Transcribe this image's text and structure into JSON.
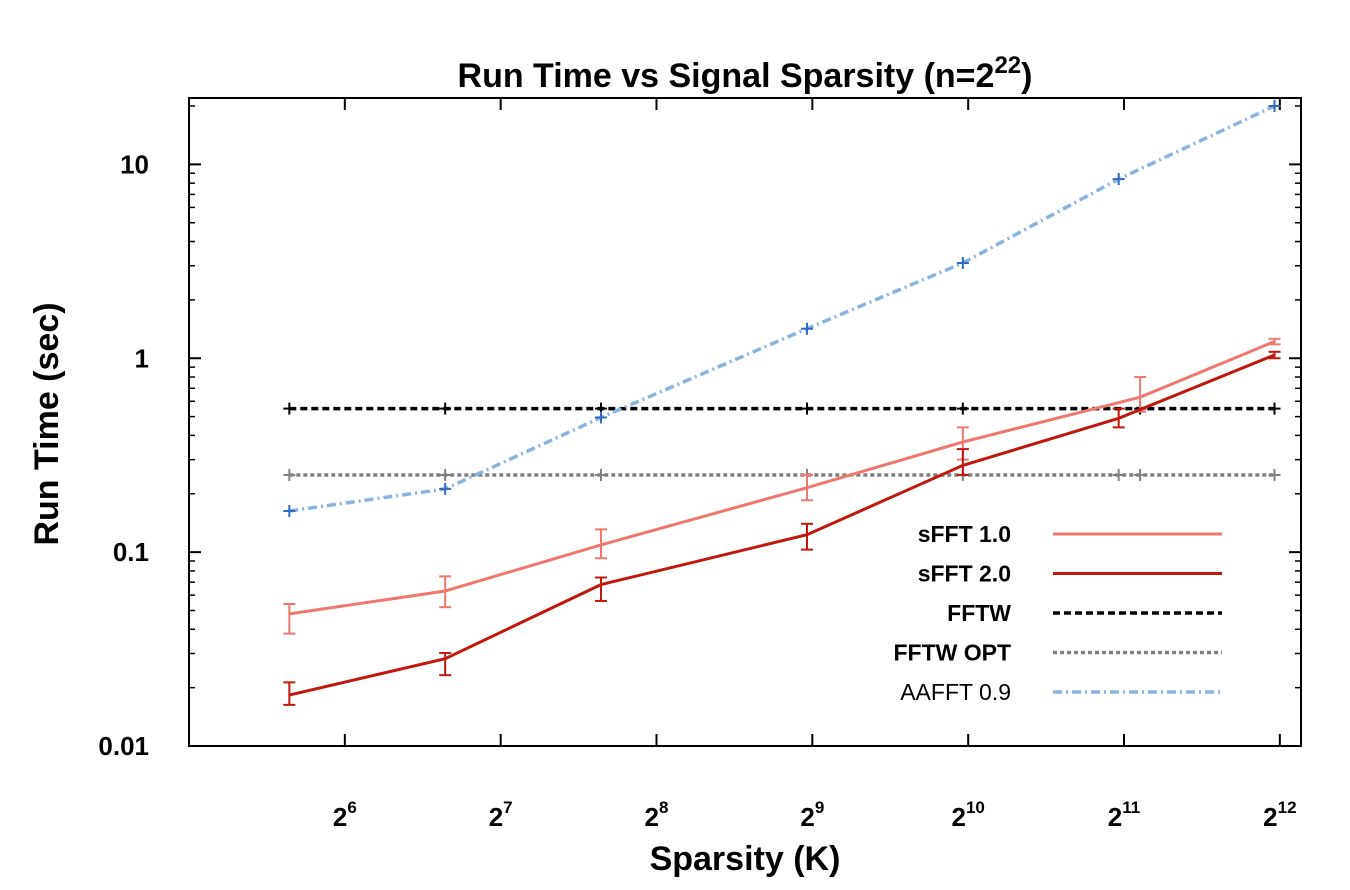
{
  "chart_data": {
    "type": "line",
    "title": {
      "main": "Run Time vs Signal Sparsity (n=2",
      "sup": "22",
      "tail": ")"
    },
    "xlabel": "Sparsity (K)",
    "ylabel": "Run Time (sec)",
    "x_scale": "log2",
    "y_scale": "log10",
    "xlim": [
      32,
      4500
    ],
    "ylim": [
      0.01,
      22
    ],
    "y_ticks": [
      {
        "value": 0.01,
        "label": "0.01"
      },
      {
        "value": 0.1,
        "label": "0.1"
      },
      {
        "value": 1,
        "label": "1"
      },
      {
        "value": 10,
        "label": "10"
      }
    ],
    "x_ticks": [
      {
        "value": 64,
        "base": "2",
        "exp": "6"
      },
      {
        "value": 128,
        "base": "2",
        "exp": "7"
      },
      {
        "value": 256,
        "base": "2",
        "exp": "8"
      },
      {
        "value": 512,
        "base": "2",
        "exp": "9"
      },
      {
        "value": 1024,
        "base": "2",
        "exp": "10"
      },
      {
        "value": 2048,
        "base": "2",
        "exp": "11"
      },
      {
        "value": 4096,
        "base": "2",
        "exp": "12"
      }
    ],
    "legend_position": "bottom-right",
    "grid": false,
    "series": [
      {
        "name": "sFFT 1.0",
        "color": "#f07870",
        "style": "solid",
        "bold_label": true,
        "points": [
          {
            "x": 50,
            "y": 0.048,
            "lo": 0.038,
            "hi": 0.054
          },
          {
            "x": 100,
            "y": 0.063,
            "lo": 0.052,
            "hi": 0.075
          },
          {
            "x": 200,
            "y": 0.109,
            "lo": 0.093,
            "hi": 0.131
          },
          {
            "x": 500,
            "y": 0.215,
            "lo": 0.185,
            "hi": 0.25
          },
          {
            "x": 1000,
            "y": 0.37,
            "lo": 0.3,
            "hi": 0.44
          },
          {
            "x": 2200,
            "y": 0.63,
            "lo": 0.53,
            "hi": 0.8
          },
          {
            "x": 4000,
            "y": 1.22,
            "lo": 1.18,
            "hi": 1.26
          }
        ]
      },
      {
        "name": "sFFT 2.0",
        "color": "#c0180f",
        "style": "solid",
        "bold_label": true,
        "points": [
          {
            "x": 50,
            "y": 0.0183,
            "lo": 0.0163,
            "hi": 0.0213
          },
          {
            "x": 100,
            "y": 0.0282,
            "lo": 0.0232,
            "hi": 0.0302
          },
          {
            "x": 200,
            "y": 0.068,
            "lo": 0.056,
            "hi": 0.074
          },
          {
            "x": 500,
            "y": 0.123,
            "lo": 0.103,
            "hi": 0.14
          },
          {
            "x": 1000,
            "y": 0.28,
            "lo": 0.25,
            "hi": 0.34
          },
          {
            "x": 2000,
            "y": 0.49,
            "lo": 0.44,
            "hi": 0.55
          },
          {
            "x": 4000,
            "y": 1.04,
            "lo": 1.0,
            "hi": 1.08
          }
        ]
      },
      {
        "name": "FFTW",
        "color": "#000000",
        "style": "dashed",
        "bold_label": true,
        "points": [
          {
            "x": 50,
            "y": 0.55
          },
          {
            "x": 100,
            "y": 0.55
          },
          {
            "x": 200,
            "y": 0.55
          },
          {
            "x": 500,
            "y": 0.55
          },
          {
            "x": 1000,
            "y": 0.55
          },
          {
            "x": 2200,
            "y": 0.55
          },
          {
            "x": 4000,
            "y": 0.55
          }
        ]
      },
      {
        "name": "FFTW OPT",
        "color": "#808080",
        "style": "dotted",
        "bold_label": true,
        "points": [
          {
            "x": 50,
            "y": 0.25
          },
          {
            "x": 100,
            "y": 0.25
          },
          {
            "x": 200,
            "y": 0.25
          },
          {
            "x": 500,
            "y": 0.25
          },
          {
            "x": 1000,
            "y": 0.25
          },
          {
            "x": 2000,
            "y": 0.25
          },
          {
            "x": 2200,
            "y": 0.25
          },
          {
            "x": 4000,
            "y": 0.25
          }
        ]
      },
      {
        "name": "AAFFT 0.9",
        "color": "#8ab4e0",
        "marker_color": "#2e6bc0",
        "style": "dashdot",
        "bold_label": false,
        "points": [
          {
            "x": 50,
            "y": 0.163
          },
          {
            "x": 100,
            "y": 0.212
          },
          {
            "x": 200,
            "y": 0.495
          },
          {
            "x": 500,
            "y": 1.42
          },
          {
            "x": 1000,
            "y": 3.1
          },
          {
            "x": 2000,
            "y": 8.4
          },
          {
            "x": 4000,
            "y": 20
          }
        ]
      }
    ]
  }
}
